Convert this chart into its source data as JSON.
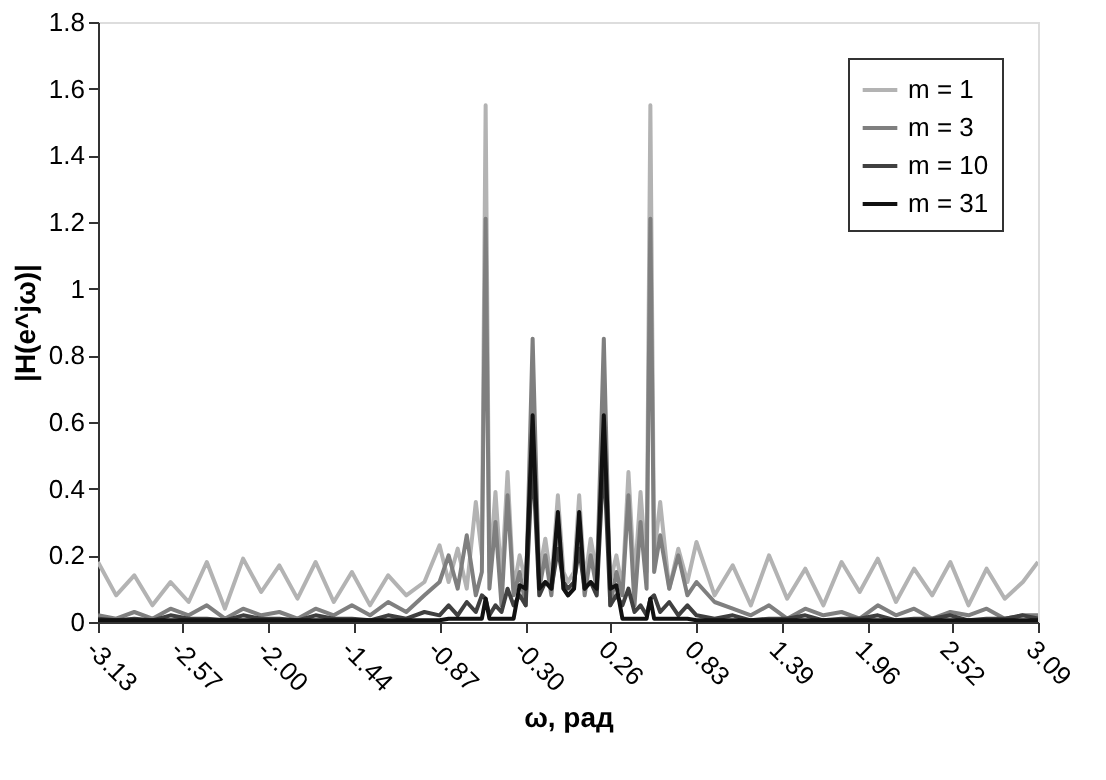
{
  "chart_data": {
    "type": "line",
    "xlabel": "ω, рад",
    "ylabel": "|H(e^jω)|",
    "x": [
      -3.13,
      -3.01,
      -2.89,
      -2.77,
      -2.65,
      -2.53,
      -2.41,
      -2.29,
      -2.17,
      -2.05,
      -1.93,
      -1.81,
      -1.69,
      -1.57,
      -1.45,
      -1.33,
      -1.21,
      -1.09,
      -0.97,
      -0.87,
      -0.81,
      -0.75,
      -0.69,
      -0.63,
      -0.59,
      -0.565,
      -0.54,
      -0.5,
      -0.46,
      -0.42,
      -0.38,
      -0.34,
      -0.3,
      -0.254,
      -0.21,
      -0.17,
      -0.13,
      -0.087,
      -0.05,
      -0.02,
      0.02,
      0.054,
      0.09,
      0.13,
      0.17,
      0.217,
      0.26,
      0.3,
      0.34,
      0.38,
      0.42,
      0.46,
      0.5,
      0.525,
      0.55,
      0.59,
      0.65,
      0.71,
      0.77,
      0.83,
      0.95,
      1.07,
      1.19,
      1.31,
      1.43,
      1.55,
      1.67,
      1.79,
      1.91,
      2.03,
      2.15,
      2.27,
      2.39,
      2.51,
      2.63,
      2.75,
      2.87,
      2.99,
      3.09
    ],
    "series": [
      {
        "name": "m = 1",
        "color": "#b3b3b3",
        "values": [
          0.18,
          0.08,
          0.14,
          0.05,
          0.12,
          0.06,
          0.18,
          0.04,
          0.19,
          0.09,
          0.17,
          0.07,
          0.18,
          0.06,
          0.15,
          0.05,
          0.14,
          0.08,
          0.12,
          0.23,
          0.12,
          0.22,
          0.1,
          0.36,
          0.2,
          1.55,
          0.15,
          0.39,
          0.12,
          0.45,
          0.1,
          0.2,
          0.12,
          0.6,
          0.15,
          0.25,
          0.12,
          0.38,
          0.15,
          0.12,
          0.15,
          0.38,
          0.12,
          0.25,
          0.15,
          0.6,
          0.12,
          0.2,
          0.1,
          0.45,
          0.12,
          0.39,
          0.15,
          1.55,
          0.2,
          0.36,
          0.1,
          0.22,
          0.12,
          0.24,
          0.08,
          0.17,
          0.05,
          0.2,
          0.07,
          0.16,
          0.05,
          0.18,
          0.09,
          0.19,
          0.06,
          0.16,
          0.08,
          0.18,
          0.05,
          0.16,
          0.07,
          0.12,
          0.18
        ]
      },
      {
        "name": "m = 3",
        "color": "#7f7f7f",
        "values": [
          0.02,
          0.01,
          0.03,
          0.01,
          0.04,
          0.02,
          0.05,
          0.01,
          0.04,
          0.02,
          0.03,
          0.01,
          0.04,
          0.02,
          0.05,
          0.02,
          0.06,
          0.03,
          0.08,
          0.12,
          0.2,
          0.1,
          0.26,
          0.08,
          0.15,
          1.21,
          0.1,
          0.3,
          0.05,
          0.38,
          0.08,
          0.15,
          0.05,
          0.85,
          0.1,
          0.2,
          0.08,
          0.3,
          0.1,
          0.08,
          0.1,
          0.3,
          0.08,
          0.2,
          0.1,
          0.85,
          0.05,
          0.15,
          0.08,
          0.38,
          0.05,
          0.3,
          0.1,
          1.21,
          0.15,
          0.26,
          0.1,
          0.2,
          0.08,
          0.12,
          0.06,
          0.04,
          0.02,
          0.05,
          0.01,
          0.04,
          0.02,
          0.03,
          0.01,
          0.05,
          0.02,
          0.04,
          0.01,
          0.03,
          0.02,
          0.04,
          0.01,
          0.02,
          0.02
        ]
      },
      {
        "name": "m = 10",
        "color": "#404040",
        "values": [
          0.01,
          0.005,
          0.01,
          0.005,
          0.02,
          0.01,
          0.01,
          0.005,
          0.02,
          0.01,
          0.01,
          0.005,
          0.02,
          0.01,
          0.01,
          0.005,
          0.02,
          0.01,
          0.03,
          0.02,
          0.05,
          0.02,
          0.06,
          0.03,
          0.08,
          0.07,
          0.02,
          0.05,
          0.03,
          0.1,
          0.05,
          0.08,
          0.05,
          0.5,
          0.08,
          0.12,
          0.1,
          0.22,
          0.12,
          0.1,
          0.12,
          0.22,
          0.1,
          0.12,
          0.08,
          0.5,
          0.05,
          0.08,
          0.05,
          0.1,
          0.03,
          0.05,
          0.02,
          0.07,
          0.08,
          0.03,
          0.06,
          0.02,
          0.05,
          0.02,
          0.01,
          0.02,
          0.005,
          0.01,
          0.01,
          0.02,
          0.005,
          0.01,
          0.01,
          0.02,
          0.005,
          0.01,
          0.01,
          0.02,
          0.005,
          0.01,
          0.01,
          0.02,
          0.01
        ]
      },
      {
        "name": "m = 31",
        "color": "#111111",
        "values": [
          0.005,
          0.005,
          0.005,
          0.005,
          0.005,
          0.005,
          0.005,
          0.005,
          0.005,
          0.005,
          0.005,
          0.005,
          0.005,
          0.005,
          0.005,
          0.005,
          0.005,
          0.005,
          0.005,
          0.005,
          0.01,
          0.01,
          0.01,
          0.01,
          0.01,
          0.07,
          0.01,
          0.01,
          0.01,
          0.01,
          0.01,
          0.11,
          0.1,
          0.62,
          0.1,
          0.12,
          0.1,
          0.33,
          0.1,
          0.08,
          0.1,
          0.33,
          0.1,
          0.12,
          0.1,
          0.62,
          0.1,
          0.11,
          0.01,
          0.01,
          0.01,
          0.01,
          0.01,
          0.07,
          0.01,
          0.01,
          0.01,
          0.01,
          0.01,
          0.005,
          0.005,
          0.005,
          0.005,
          0.005,
          0.005,
          0.005,
          0.005,
          0.005,
          0.005,
          0.005,
          0.005,
          0.005,
          0.005,
          0.005,
          0.005,
          0.005,
          0.005,
          0.005,
          0.005
        ]
      }
    ],
    "xlim": [
      -3.13,
      3.09
    ],
    "xticks": [
      -3.13,
      -2.57,
      {
        "value": -2,
        "label": "-2.00"
      },
      -1.44,
      -0.87,
      {
        "value": -0.3,
        "label": "-0.30"
      },
      0.26,
      0.83,
      1.39,
      1.96,
      2.52,
      3.09
    ],
    "ylim": [
      0,
      1.8
    ],
    "yticks": [
      0,
      0.2,
      0.4,
      0.6,
      0.8,
      1,
      1.2,
      1.4,
      1.6,
      1.8
    ],
    "grid": false,
    "legend": "top right",
    "line_style": "solid",
    "marker": "none"
  }
}
